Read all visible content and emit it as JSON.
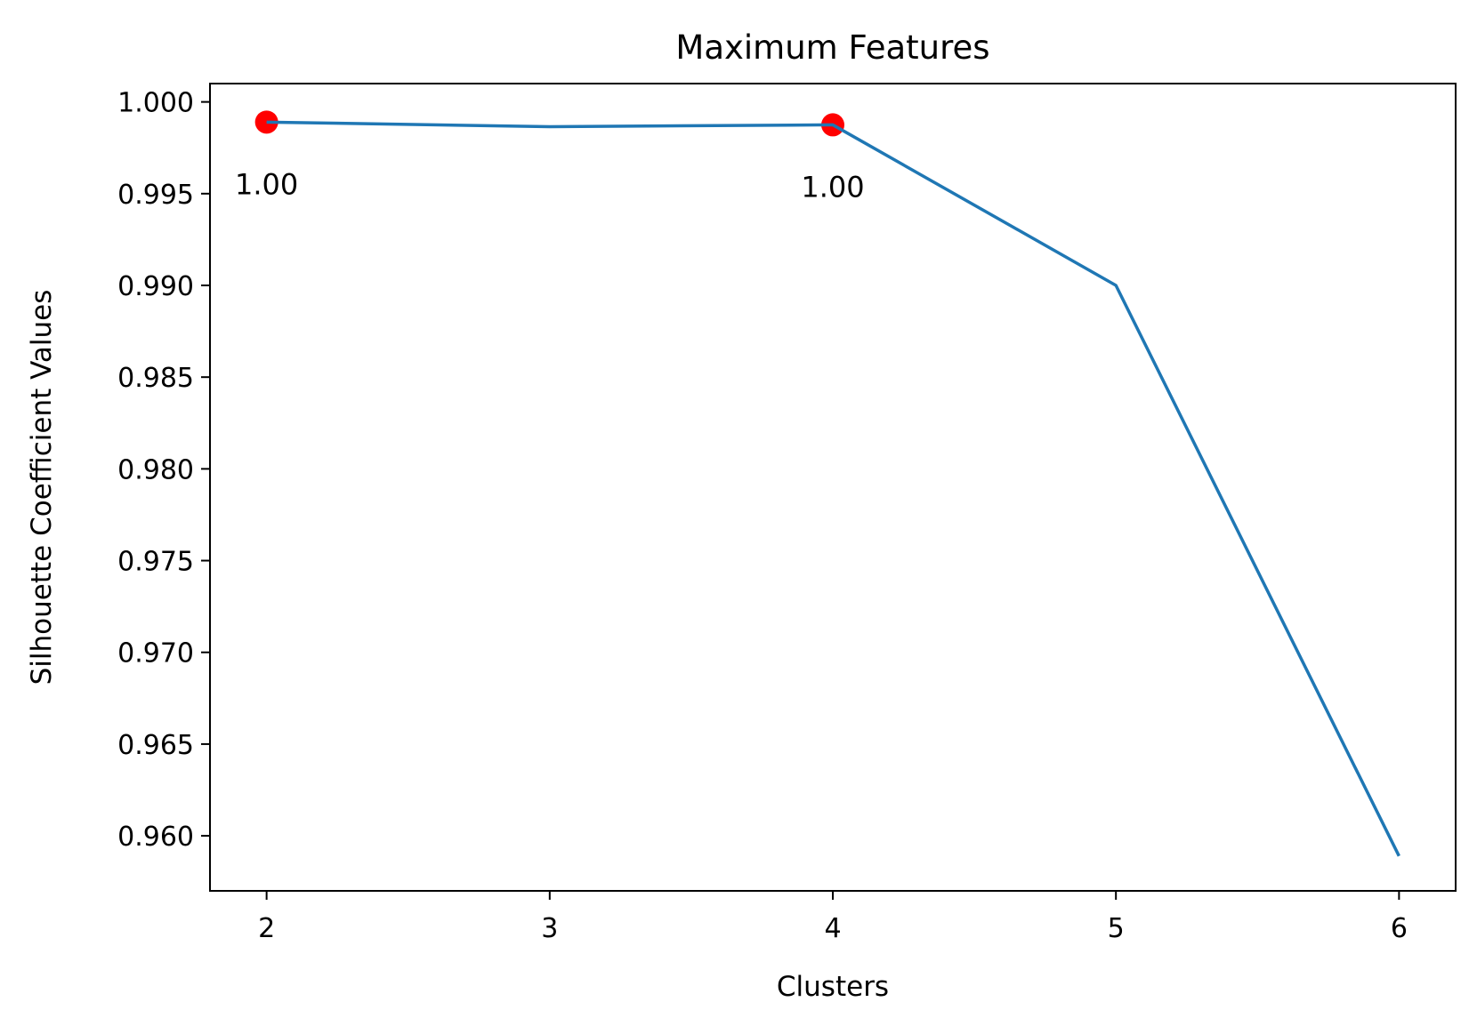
{
  "chart_data": {
    "type": "line",
    "title": "Maximum Features",
    "xlabel": "Clusters",
    "ylabel": "Silhouette Coefficient Values",
    "x": [
      2,
      3,
      4,
      5,
      6
    ],
    "series": [
      {
        "values": [
          0.9989,
          0.99865,
          0.99875,
          0.99,
          0.9589
        ],
        "color": "#1f77b4"
      }
    ],
    "highlighted_points": [
      {
        "x": 2,
        "y": 0.9989,
        "label": "1.00",
        "color": "#ff0000"
      },
      {
        "x": 4,
        "y": 0.99875,
        "label": "1.00",
        "color": "#ff0000"
      }
    ],
    "xlim": [
      1.8,
      6.2
    ],
    "ylim": [
      0.957,
      1.001
    ],
    "xticks": [
      2,
      3,
      4,
      5,
      6
    ],
    "xtick_labels": [
      "2",
      "3",
      "4",
      "5",
      "6"
    ],
    "yticks": [
      0.96,
      0.965,
      0.97,
      0.975,
      0.98,
      0.985,
      0.99,
      0.995,
      1.0
    ],
    "ytick_labels": [
      "0.960",
      "0.965",
      "0.970",
      "0.975",
      "0.980",
      "0.985",
      "0.990",
      "0.995",
      "1.000"
    ],
    "grid": false,
    "legend": "none"
  }
}
